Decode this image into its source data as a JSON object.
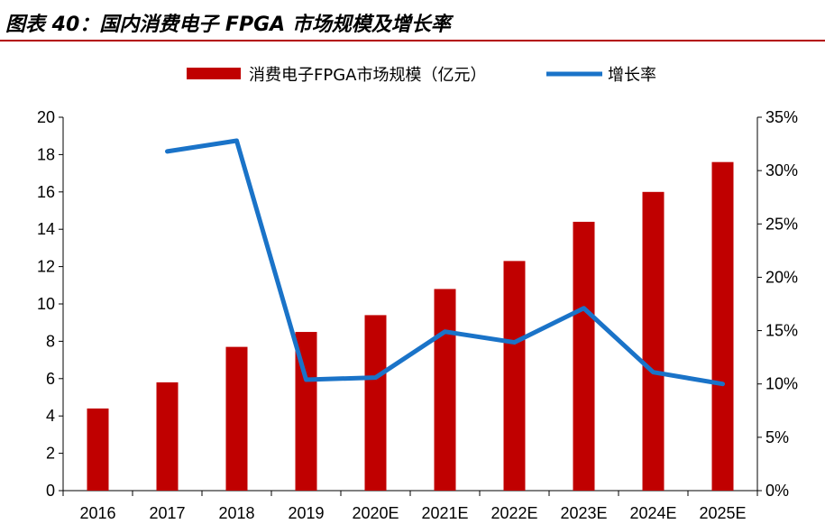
{
  "figure_title": "图表 40：国内消费电子 FPGA 市场规模及增长率",
  "colors": {
    "bar": "#c00000",
    "line": "#1a73c8",
    "accent": "#b30000"
  },
  "chart_data": {
    "type": "bar",
    "categories": [
      "2016",
      "2017",
      "2018",
      "2019",
      "2020E",
      "2021E",
      "2022E",
      "2023E",
      "2024E",
      "2025E"
    ],
    "series": [
      {
        "name": "消费电子FPGA市场规模（亿元）",
        "type": "bar",
        "axis": "left",
        "values": [
          4.4,
          5.8,
          7.7,
          8.5,
          9.4,
          10.8,
          12.3,
          14.4,
          16.0,
          17.6
        ]
      },
      {
        "name": "增长率",
        "type": "line",
        "axis": "right",
        "values": [
          null,
          31.8,
          32.8,
          10.4,
          10.6,
          14.9,
          13.9,
          17.1,
          11.1,
          10.0
        ]
      }
    ],
    "ylim_left": [
      0,
      20
    ],
    "yticks_left": [
      "0",
      "2",
      "4",
      "6",
      "8",
      "10",
      "12",
      "14",
      "16",
      "18",
      "20"
    ],
    "ylim_right": [
      0,
      35
    ],
    "yticks_right": [
      "0%",
      "5%",
      "10%",
      "15%",
      "20%",
      "25%",
      "30%",
      "35%"
    ],
    "legend": [
      "消费电子FPGA市场规模（亿元）",
      "增长率"
    ],
    "legend_position": "top"
  }
}
